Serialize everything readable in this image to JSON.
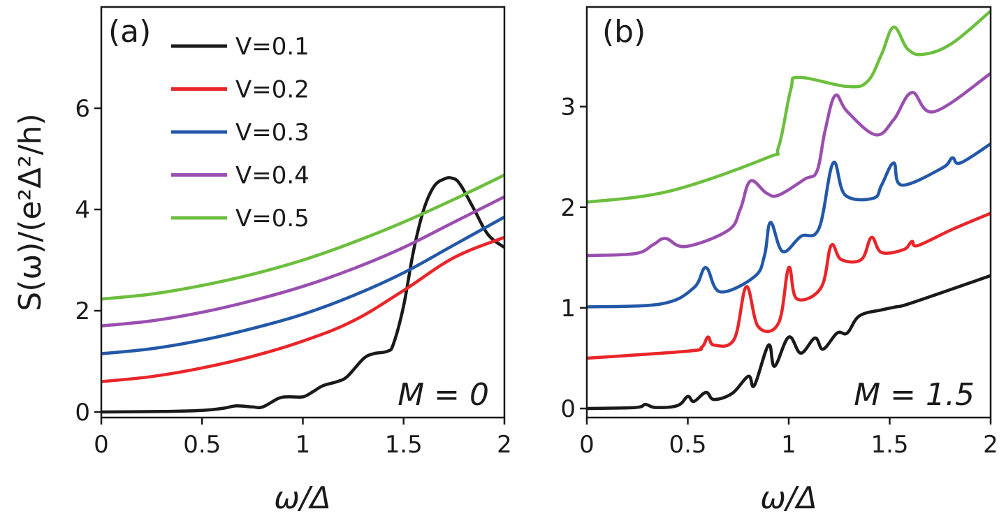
{
  "chart_data": [
    {
      "type": "line",
      "panel_label": "(a)",
      "annotation": "M = 0",
      "xlabel": "ω/Δ",
      "ylabel": "S(ω)/(e²Δ²/h)",
      "xlim": [
        0,
        2
      ],
      "ylim": [
        -0.11,
        8.0
      ],
      "xticks": [
        0,
        0.5,
        1,
        1.5,
        2
      ],
      "xtick_labels": [
        "0",
        "0.5",
        "1",
        "1.5",
        "2"
      ],
      "yticks": [
        0,
        2,
        4,
        6
      ],
      "ytick_labels": [
        "0",
        "2",
        "4",
        "6"
      ],
      "grid": false,
      "legend_position": "top-left",
      "series": [
        {
          "name": "V=0.1",
          "color": "#1a1a1a",
          "x": [
            0,
            0.3,
            0.5,
            0.6,
            0.67,
            0.75,
            0.8,
            0.88,
            0.93,
            1.0,
            1.05,
            1.1,
            1.17,
            1.22,
            1.3,
            1.35,
            1.42,
            1.45,
            1.5,
            1.55,
            1.6,
            1.65,
            1.7,
            1.74,
            1.78,
            1.85,
            1.92,
            2.0
          ],
          "y": [
            0,
            0.01,
            0.03,
            0.07,
            0.12,
            0.1,
            0.1,
            0.27,
            0.3,
            0.3,
            0.4,
            0.52,
            0.6,
            0.7,
            1.05,
            1.15,
            1.2,
            1.35,
            2.1,
            3.2,
            4.0,
            4.45,
            4.6,
            4.62,
            4.5,
            4.0,
            3.5,
            3.25
          ]
        },
        {
          "name": "V=0.2",
          "color": "#e8262a",
          "x": [
            0,
            0.25,
            0.5,
            0.75,
            1,
            1.25,
            1.5,
            1.75,
            2
          ],
          "y": [
            0.6,
            0.7,
            0.87,
            1.1,
            1.4,
            1.8,
            2.4,
            3.05,
            3.45
          ]
        },
        {
          "name": "V=0.3",
          "color": "#2358a8",
          "x": [
            0,
            0.25,
            0.5,
            0.75,
            1,
            1.25,
            1.5,
            1.75,
            2
          ],
          "y": [
            1.15,
            1.25,
            1.42,
            1.65,
            1.93,
            2.3,
            2.75,
            3.3,
            3.85
          ]
        },
        {
          "name": "V=0.4",
          "color": "#9a4fb0",
          "x": [
            0,
            0.25,
            0.5,
            0.75,
            1,
            1.25,
            1.5,
            1.75,
            2
          ],
          "y": [
            1.7,
            1.8,
            1.97,
            2.2,
            2.48,
            2.83,
            3.25,
            3.75,
            4.25
          ]
        },
        {
          "name": "V=0.5",
          "color": "#6cbf3e",
          "x": [
            0,
            0.25,
            0.5,
            0.75,
            1,
            1.25,
            1.5,
            1.75,
            2
          ],
          "y": [
            2.23,
            2.33,
            2.5,
            2.72,
            3.0,
            3.35,
            3.75,
            4.2,
            4.68
          ]
        }
      ]
    },
    {
      "type": "line",
      "panel_label": "(b)",
      "annotation": "M = 1.5",
      "xlabel": "ω/Δ",
      "xlim": [
        0,
        2
      ],
      "ylim": [
        -0.09,
        3.99
      ],
      "xticks": [
        0,
        0.5,
        1,
        1.5,
        2
      ],
      "xtick_labels": [
        "0",
        "0.5",
        "1",
        "1.5",
        "2"
      ],
      "yticks": [
        0,
        1,
        2,
        3
      ],
      "ytick_labels": [
        "0",
        "1",
        "2",
        "3"
      ],
      "grid": false,
      "series": [
        {
          "color": "#1a1a1a",
          "x": [
            0,
            0.24,
            0.29,
            0.34,
            0.45,
            0.5,
            0.53,
            0.59,
            0.63,
            0.72,
            0.8,
            0.83,
            0.9,
            0.93,
            1.0,
            1.06,
            1.13,
            1.17,
            1.24,
            1.29,
            1.35,
            1.46,
            1.53,
            1.61,
            2.0
          ],
          "y": [
            0,
            0.01,
            0.04,
            0.01,
            0.03,
            0.12,
            0.07,
            0.16,
            0.09,
            0.15,
            0.32,
            0.23,
            0.63,
            0.42,
            0.71,
            0.55,
            0.7,
            0.59,
            0.75,
            0.75,
            0.92,
            0.98,
            1.01,
            1.05,
            1.32
          ]
        },
        {
          "color": "#e8262a",
          "x": [
            0,
            0.5,
            0.57,
            0.6,
            0.63,
            0.73,
            0.79,
            0.85,
            0.95,
            1.0,
            1.04,
            1.16,
            1.21,
            1.26,
            1.36,
            1.41,
            1.46,
            1.57,
            1.61,
            1.64,
            1.81,
            2.0
          ],
          "y": [
            0.5,
            0.57,
            0.61,
            0.71,
            0.63,
            0.69,
            1.21,
            0.81,
            0.85,
            1.4,
            1.09,
            1.2,
            1.62,
            1.48,
            1.48,
            1.7,
            1.55,
            1.58,
            1.66,
            1.62,
            1.78,
            1.94
          ]
        },
        {
          "color": "#2358a8",
          "x": [
            0,
            0.37,
            0.53,
            0.59,
            0.66,
            0.83,
            0.88,
            0.91,
            0.97,
            1.06,
            1.15,
            1.22,
            1.28,
            1.42,
            1.46,
            1.52,
            1.56,
            1.76,
            1.81,
            1.85,
            2.0
          ],
          "y": [
            1.01,
            1.04,
            1.2,
            1.4,
            1.16,
            1.31,
            1.52,
            1.85,
            1.56,
            1.71,
            1.79,
            2.44,
            2.12,
            2.09,
            2.22,
            2.44,
            2.22,
            2.39,
            2.49,
            2.44,
            2.63
          ]
        },
        {
          "color": "#9a4fb0",
          "x": [
            0,
            0.24,
            0.33,
            0.39,
            0.49,
            0.7,
            0.76,
            0.81,
            0.89,
            0.95,
            1.08,
            1.14,
            1.18,
            1.23,
            1.29,
            1.43,
            1.52,
            1.61,
            1.72,
            2.0
          ],
          "y": [
            1.52,
            1.54,
            1.63,
            1.69,
            1.61,
            1.77,
            1.98,
            2.26,
            2.14,
            2.12,
            2.28,
            2.36,
            2.76,
            3.11,
            2.95,
            2.72,
            2.87,
            3.14,
            2.95,
            3.33
          ]
        },
        {
          "color": "#6cbf3e",
          "x": [
            0,
            0.41,
            0.89,
            0.95,
            1.01,
            1.05,
            1.29,
            1.39,
            1.46,
            1.52,
            1.59,
            1.67,
            1.81,
            2.0
          ],
          "y": [
            2.05,
            2.16,
            2.49,
            2.6,
            3.17,
            3.29,
            3.2,
            3.25,
            3.52,
            3.79,
            3.57,
            3.52,
            3.63,
            3.95
          ]
        }
      ]
    }
  ]
}
